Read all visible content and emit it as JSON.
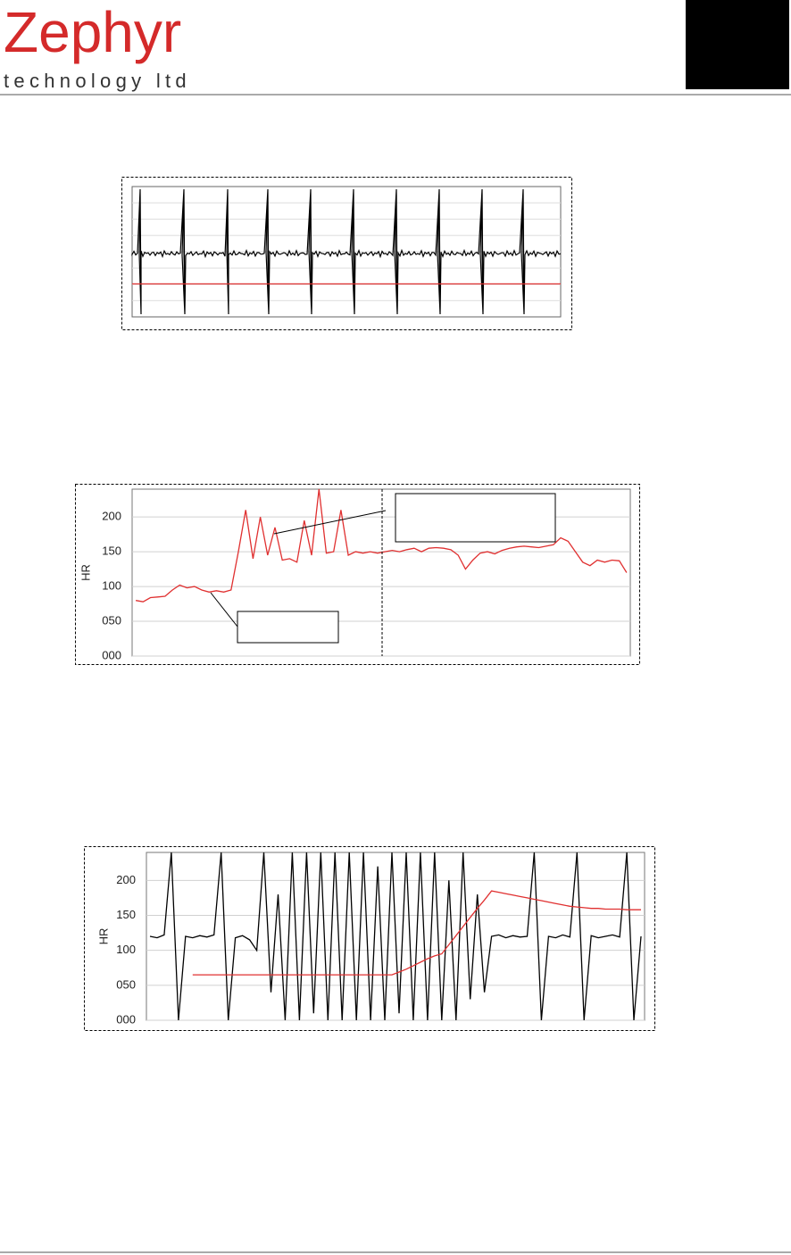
{
  "header": {
    "brand": "Zephyr",
    "tagline": "technology ltd"
  },
  "chart_data": [
    {
      "type": "line",
      "y_label": "HR",
      "ylim": [
        0,
        240
      ],
      "yticks": [
        {
          "value": 0,
          "label": "000"
        },
        {
          "value": 50,
          "label": "050"
        },
        100,
        150,
        200
      ],
      "grid": true,
      "series": [
        {
          "color": "#e03030",
          "values": [
            80,
            78,
            84,
            85,
            86,
            95,
            102,
            98,
            100,
            95,
            92,
            94,
            92,
            95,
            150,
            210,
            140,
            200,
            145,
            185,
            138,
            140,
            135,
            195,
            145,
            240,
            148,
            150,
            210,
            145,
            150,
            148,
            150,
            148,
            150,
            152,
            150,
            153,
            155,
            150,
            155,
            156,
            155,
            153,
            145,
            125,
            138,
            148,
            150,
            147,
            152,
            155,
            157,
            158,
            157,
            156,
            158,
            160,
            170,
            165,
            150,
            135,
            130,
            138,
            135,
            138,
            137,
            120
          ]
        }
      ]
    },
    {
      "type": "line",
      "y_label": "HR",
      "ylim": [
        0,
        240
      ],
      "yticks": [
        {
          "value": 0,
          "label": "000"
        },
        {
          "value": 50,
          "label": "050"
        },
        100,
        150,
        200
      ],
      "grid": true,
      "series": [
        {
          "color": "#000000",
          "values": [
            120,
            118,
            122,
            240,
            0,
            120,
            118,
            121,
            119,
            122,
            240,
            0,
            118,
            121,
            115,
            100,
            240,
            40,
            180,
            0,
            240,
            0,
            240,
            10,
            240,
            0,
            240,
            0,
            240,
            0,
            240,
            0,
            220,
            0,
            240,
            10,
            240,
            0,
            240,
            0,
            240,
            0,
            200,
            0,
            240,
            30,
            180,
            40,
            120,
            122,
            118,
            121,
            119,
            120,
            240,
            0,
            120,
            118,
            122,
            119,
            240,
            0,
            121,
            118,
            120,
            122,
            119,
            240,
            0,
            120
          ]
        },
        {
          "color": "#e03030",
          "values": [
            null,
            null,
            null,
            null,
            null,
            null,
            65,
            65,
            65,
            65,
            65,
            65,
            65,
            65,
            65,
            65,
            65,
            65,
            65,
            65,
            65,
            65,
            65,
            65,
            65,
            65,
            65,
            65,
            65,
            65,
            65,
            65,
            65,
            65,
            65,
            69,
            73,
            78,
            83,
            88,
            92,
            95,
            108,
            121,
            134,
            147,
            160,
            172,
            185,
            183,
            181,
            179,
            177,
            175,
            173,
            171,
            169,
            167,
            165,
            163,
            162,
            161,
            160,
            160,
            159,
            159,
            159,
            158,
            158,
            158
          ]
        }
      ]
    }
  ]
}
